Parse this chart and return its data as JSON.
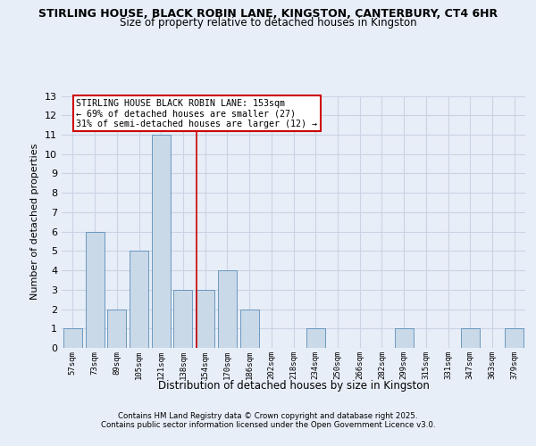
{
  "title_line1": "STIRLING HOUSE, BLACK ROBIN LANE, KINGSTON, CANTERBURY, CT4 6HR",
  "title_line2": "Size of property relative to detached houses in Kingston",
  "xlabel": "Distribution of detached houses by size in Kingston",
  "ylabel": "Number of detached properties",
  "bin_labels": [
    "57sqm",
    "73sqm",
    "89sqm",
    "105sqm",
    "121sqm",
    "138sqm",
    "154sqm",
    "170sqm",
    "186sqm",
    "202sqm",
    "218sqm",
    "234sqm",
    "250sqm",
    "266sqm",
    "282sqm",
    "299sqm",
    "315sqm",
    "331sqm",
    "347sqm",
    "363sqm",
    "379sqm"
  ],
  "bar_values": [
    1,
    6,
    2,
    5,
    11,
    3,
    3,
    4,
    2,
    0,
    0,
    1,
    0,
    0,
    0,
    1,
    0,
    0,
    1,
    0,
    1
  ],
  "bar_color": "#c9d9e8",
  "bar_edge_color": "#5b8db8",
  "grid_color": "#c8d4e4",
  "background_color": "#e8eef8",
  "red_line_x": 5.62,
  "annotation_text": "STIRLING HOUSE BLACK ROBIN LANE: 153sqm\n← 69% of detached houses are smaller (27)\n31% of semi-detached houses are larger (12) →",
  "annotation_box_color": "#ffffff",
  "annotation_border_color": "#cc0000",
  "footer_line1": "Contains HM Land Registry data © Crown copyright and database right 2025.",
  "footer_line2": "Contains public sector information licensed under the Open Government Licence v3.0.",
  "ylim": [
    0,
    13
  ],
  "yticks": [
    0,
    1,
    2,
    3,
    4,
    5,
    6,
    7,
    8,
    9,
    10,
    11,
    12,
    13
  ]
}
